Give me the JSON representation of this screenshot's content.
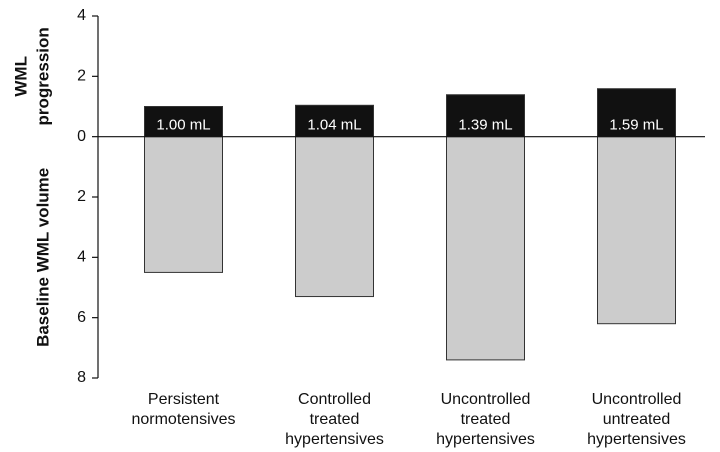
{
  "chart_data": {
    "type": "bar",
    "ylabel_top": [
      "WML",
      "progression"
    ],
    "ylabel_bottom": "Baseline WML volume",
    "categories": [
      [
        "Persistent",
        "normotensives"
      ],
      [
        "Controlled",
        "treated",
        "hypertensives"
      ],
      [
        "Uncontrolled",
        "treated",
        "hypertensives"
      ],
      [
        "Uncontrolled",
        "untreated",
        "hypertensives"
      ]
    ],
    "series": [
      {
        "color": "#111111",
        "values": [
          1.0,
          1.04,
          1.39,
          1.59
        ],
        "value_labels": [
          "1.00 mL",
          "1.04 mL",
          "1.39 mL",
          "1.59 mL"
        ]
      },
      {
        "color": "#cccccc",
        "values": [
          -4.5,
          -5.3,
          -7.4,
          -6.2
        ]
      }
    ],
    "ylim": [
      -8,
      4
    ],
    "yticks": [
      {
        "value": 4,
        "label": "4"
      },
      {
        "value": 2,
        "label": "2"
      },
      {
        "value": 0,
        "label": "0"
      },
      {
        "value": -2,
        "label": "2"
      },
      {
        "value": -4,
        "label": "4"
      },
      {
        "value": -6,
        "label": "6"
      },
      {
        "value": -8,
        "label": "8"
      }
    ]
  }
}
